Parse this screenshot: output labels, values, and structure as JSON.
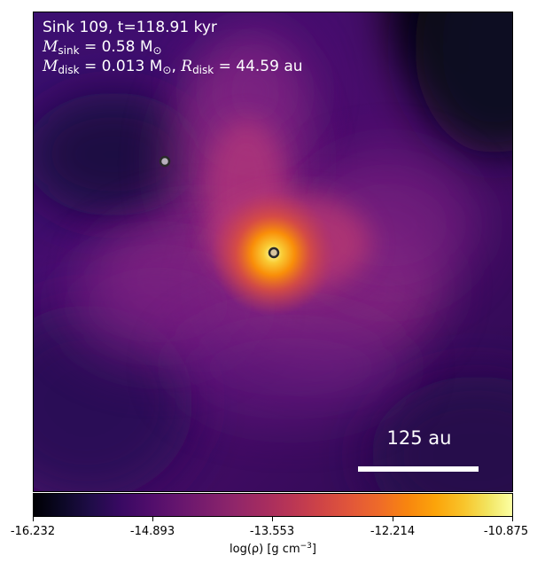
{
  "annotation": {
    "line1": "Sink 109, t=118.91 kyr",
    "line2_sym": "M",
    "line2_sub": "sink",
    "line2_value": "= 0.58 M",
    "line2_unit_sub": "⊙",
    "line3_sym": "M",
    "line3_sub": "disk",
    "line3_value": "= 0.013 M",
    "line3_unit_sub": "⊙",
    "line3_sep": ", ",
    "line3_r_sym": "R",
    "line3_r_sub": "disk",
    "line3_r_value": "= 44.59 au"
  },
  "scalebar": {
    "label": "125 au"
  },
  "colorbar": {
    "colormap": "inferno",
    "ticks": [
      "-16.232",
      "-14.893",
      "-13.553",
      "-12.214",
      "-10.875"
    ],
    "label_prefix": "log(ρ) [g cm",
    "label_exp": "−3",
    "label_suffix": "]"
  },
  "sinks": [
    {
      "name": "sink-secondary",
      "fill": "#b8b0bc"
    },
    {
      "name": "sink-primary",
      "fill": "#d8c6a0"
    }
  ]
}
